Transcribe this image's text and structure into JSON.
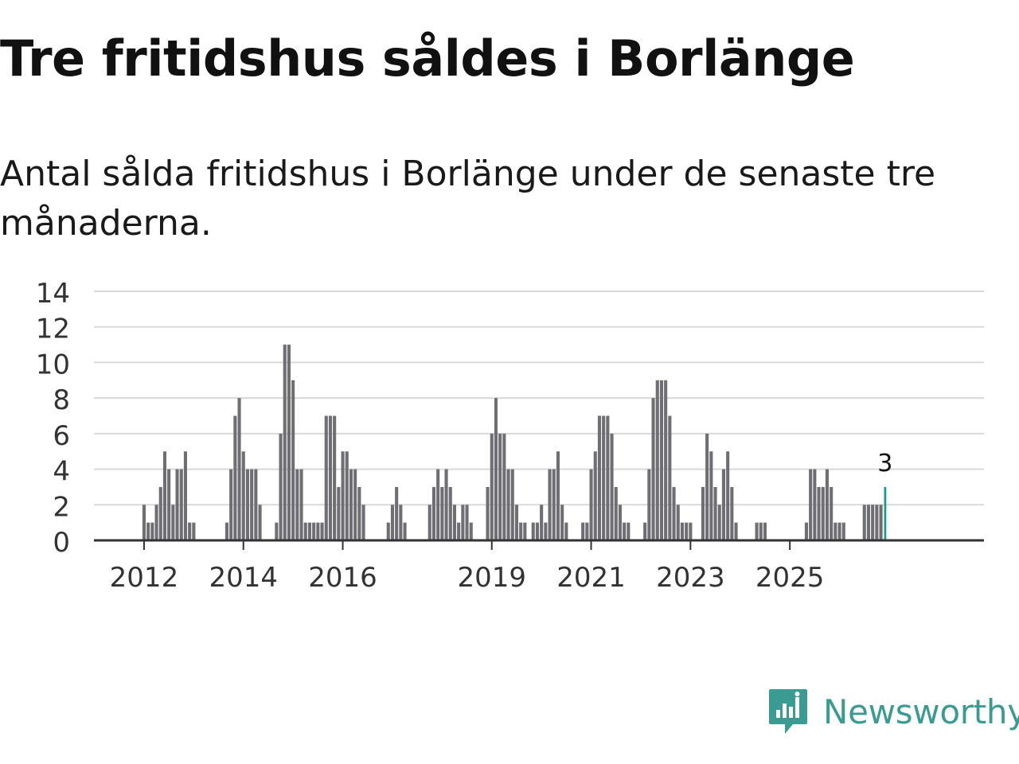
{
  "header": {
    "title": "Tre fritidshus såldes i Borlänge",
    "subtitle": "Antal sålda fritidshus i Borlänge under de senaste tre månaderna."
  },
  "brand": {
    "name": "Newsworthy",
    "icon": "newsworthy-logo-icon"
  },
  "colors": {
    "bar": "#6f6e73",
    "highlight": "#1a9c92",
    "grid": "#d9d9d9",
    "axis": "#333333",
    "brand": "#3a9b92"
  },
  "chart_data": {
    "type": "bar",
    "title": "Tre fritidshus såldes i Borlänge",
    "xlabel": "",
    "ylabel": "",
    "ylim": [
      0,
      14
    ],
    "yticks": [
      "0",
      "2",
      "4",
      "6",
      "8",
      "10",
      "12",
      "14"
    ],
    "xticks": [
      "2012",
      "2014",
      "2016",
      "2019",
      "2021",
      "2023",
      "2025"
    ],
    "grid": true,
    "start": "2011-01",
    "x_unit": "month",
    "values": [
      0,
      0,
      0,
      0,
      0,
      0,
      0,
      0,
      0,
      0,
      0,
      0,
      2,
      1,
      1,
      2,
      3,
      5,
      4,
      2,
      4,
      4,
      5,
      1,
      1,
      0,
      0,
      0,
      0,
      0,
      0,
      0,
      1,
      4,
      7,
      8,
      5,
      4,
      4,
      4,
      2,
      0,
      0,
      0,
      1,
      6,
      11,
      11,
      9,
      4,
      4,
      1,
      1,
      1,
      1,
      1,
      7,
      7,
      7,
      3,
      5,
      5,
      4,
      4,
      3,
      2,
      0,
      0,
      0,
      0,
      0,
      1,
      2,
      3,
      2,
      1,
      0,
      0,
      0,
      0,
      0,
      2,
      3,
      4,
      3,
      4,
      3,
      2,
      1,
      2,
      2,
      1,
      0,
      0,
      0,
      3,
      6,
      8,
      6,
      6,
      4,
      4,
      2,
      1,
      1,
      0,
      1,
      1,
      2,
      1,
      4,
      4,
      5,
      2,
      1,
      0,
      0,
      0,
      1,
      1,
      4,
      5,
      7,
      7,
      7,
      6,
      3,
      2,
      1,
      1,
      0,
      0,
      0,
      1,
      4,
      8,
      9,
      9,
      9,
      7,
      3,
      2,
      1,
      1,
      1,
      0,
      0,
      3,
      6,
      5,
      3,
      2,
      4,
      5,
      3,
      1,
      0,
      0,
      0,
      0,
      1,
      1,
      1,
      0,
      0,
      0,
      0,
      0,
      0,
      0,
      0,
      0,
      1,
      4,
      4,
      3,
      3,
      4,
      3,
      1,
      1,
      1,
      0,
      0,
      0,
      0,
      2,
      2,
      2,
      2,
      2,
      3
    ],
    "highlight": {
      "value": 3,
      "label": "3"
    }
  }
}
